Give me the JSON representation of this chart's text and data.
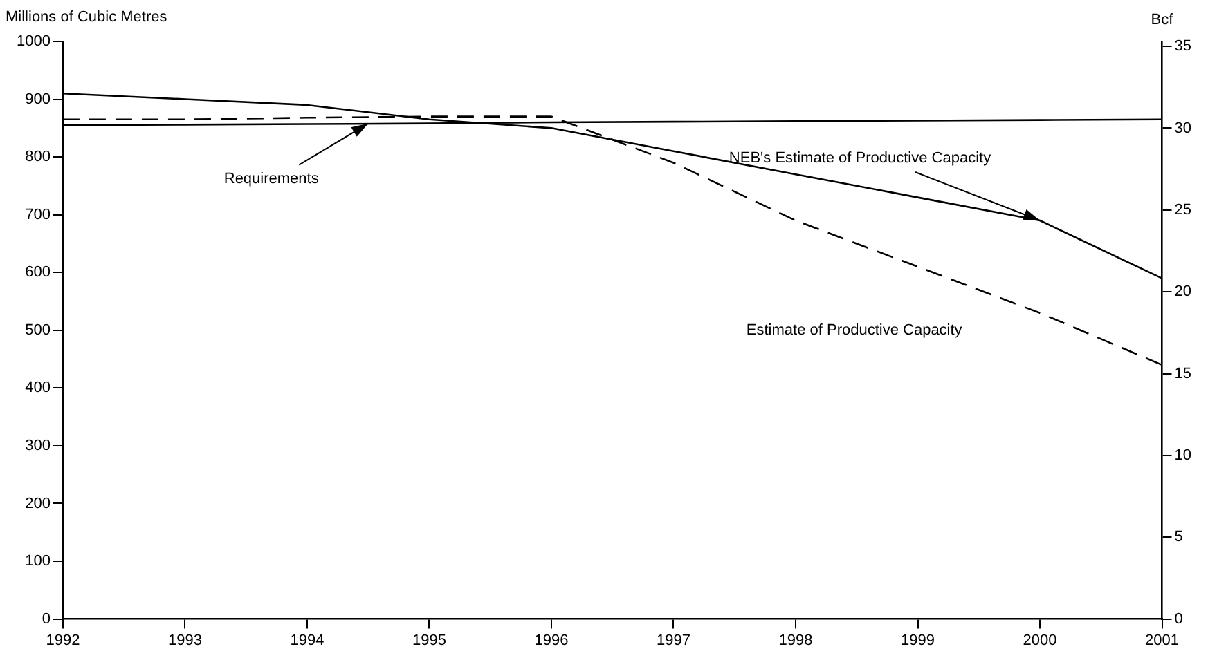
{
  "chart_data": {
    "type": "line",
    "ylabel": "Millions of Cubic Metres",
    "y2label": "Bcf",
    "x": [
      1992,
      1993,
      1994,
      1995,
      1996,
      1997,
      1998,
      1999,
      2000,
      2001
    ],
    "xlim": [
      1992,
      2001
    ],
    "xticks": [
      1992,
      1993,
      1994,
      1995,
      1996,
      1997,
      1998,
      1999,
      2000,
      2001
    ],
    "ylim": [
      0,
      1000
    ],
    "yticks": [
      0,
      100,
      200,
      300,
      400,
      500,
      600,
      700,
      800,
      900,
      1000
    ],
    "y2lim": [
      0,
      35.3
    ],
    "y2ticks": [
      0,
      5,
      10,
      15,
      20,
      25,
      30,
      35
    ],
    "series": [
      {
        "color": "#000000",
        "line_style": "solid",
        "values": [
          855,
          856,
          857,
          858,
          860,
          861,
          862,
          863,
          864,
          865
        ]
      },
      {
        "color": "#000000",
        "line_style": "solid",
        "values": [
          910,
          900,
          890,
          865,
          850,
          810,
          770,
          730,
          690,
          590
        ]
      },
      {
        "color": "#000000",
        "line_style": "dashed",
        "values": [
          865,
          865,
          868,
          870,
          870,
          790,
          690,
          610,
          530,
          440
        ]
      }
    ],
    "annotations": [
      {
        "text": "Requirements",
        "x": 1994.5,
        "y": 858
      },
      {
        "text": "NEB's Estimate of Productive Capacity",
        "x": 2000,
        "y": 690
      },
      "Estimate of Productive Capacity"
    ],
    "grid": false,
    "legend": false,
    "marker": "none"
  }
}
